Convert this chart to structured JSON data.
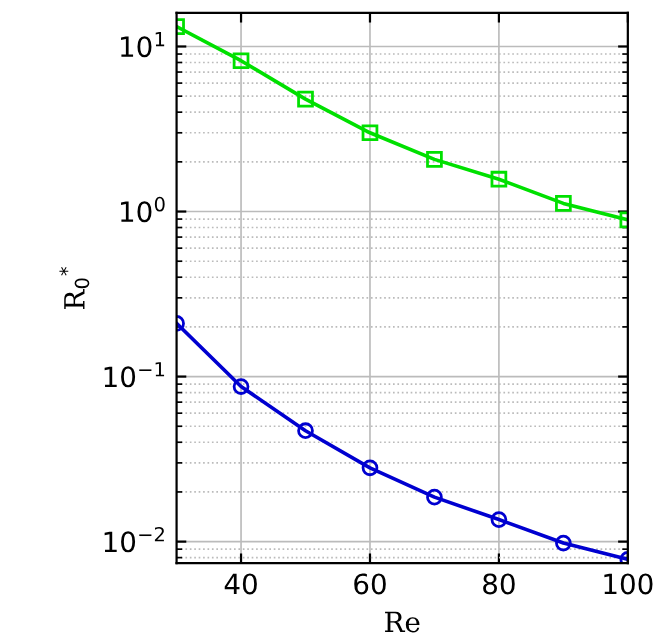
{
  "chart_data": {
    "type": "line",
    "xlabel": "Re",
    "ylabel": "R$_{0}$$^{*}$",
    "x": [
      30,
      40,
      50,
      60,
      70,
      80,
      90,
      100
    ],
    "series": [
      {
        "color": "#00e000",
        "marker": "square",
        "values": [
          13.2,
          8.2,
          4.8,
          3.0,
          2.07,
          1.57,
          1.12,
          0.89
        ]
      },
      {
        "color": "#0000d0",
        "marker": "circle",
        "values": [
          0.21,
          0.087,
          0.047,
          0.028,
          0.0186,
          0.0136,
          0.0098,
          0.0078
        ]
      }
    ],
    "log": "y",
    "xlim": [
      30,
      100
    ],
    "ylim": [
      0.0074,
      16
    ],
    "xticks": [
      40,
      60,
      80,
      100
    ],
    "yticks": [
      {
        "value": 0.01,
        "label": "10$^{−2}$"
      },
      {
        "value": 0.1,
        "label": "10$^{−1}$"
      },
      {
        "value": 1,
        "label": "10$^{0}$"
      },
      {
        "value": 10,
        "label": "10$^{1}$"
      }
    ],
    "grid": true,
    "line_style": "solid"
  }
}
